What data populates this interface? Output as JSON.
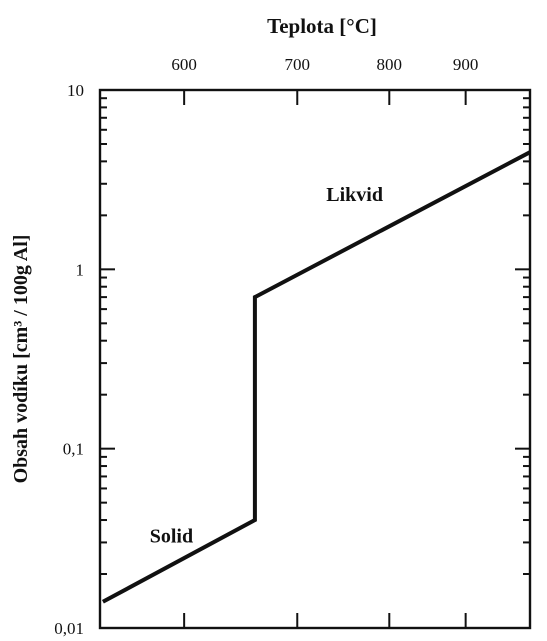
{
  "chart_data": {
    "type": "line",
    "title": "Teplota [°C]",
    "ylabel": "Obsah vodíku [cm³ / 100g Al]",
    "yscale": "log",
    "ylim": [
      0.01,
      10
    ],
    "xaxis": "reciprocal temperature",
    "xlim": [
      538,
      1000
    ],
    "y_ticks": [
      {
        "value": 10,
        "label": "10"
      },
      {
        "value": 1,
        "label": "1"
      },
      {
        "value": 0.1,
        "label": "0,1"
      },
      {
        "value": 0.01,
        "label": "0,01"
      }
    ],
    "x_ticks": [
      {
        "value": 600,
        "label": "600"
      },
      {
        "value": 700,
        "label": "700"
      },
      {
        "value": 800,
        "label": "800"
      },
      {
        "value": 900,
        "label": "900"
      }
    ],
    "series": [
      {
        "points": [
          {
            "x": 540,
            "y": 0.014
          },
          {
            "x": 660,
            "y": 0.04
          },
          {
            "x": 660,
            "y": 0.7
          },
          {
            "x": 1000,
            "y": 4.5
          }
        ]
      }
    ],
    "annotations": [
      {
        "text": "Solid",
        "x": 590,
        "y": 0.03
      },
      {
        "text": "Likvid",
        "x": 760,
        "y": 2.4
      }
    ],
    "grid": false
  }
}
